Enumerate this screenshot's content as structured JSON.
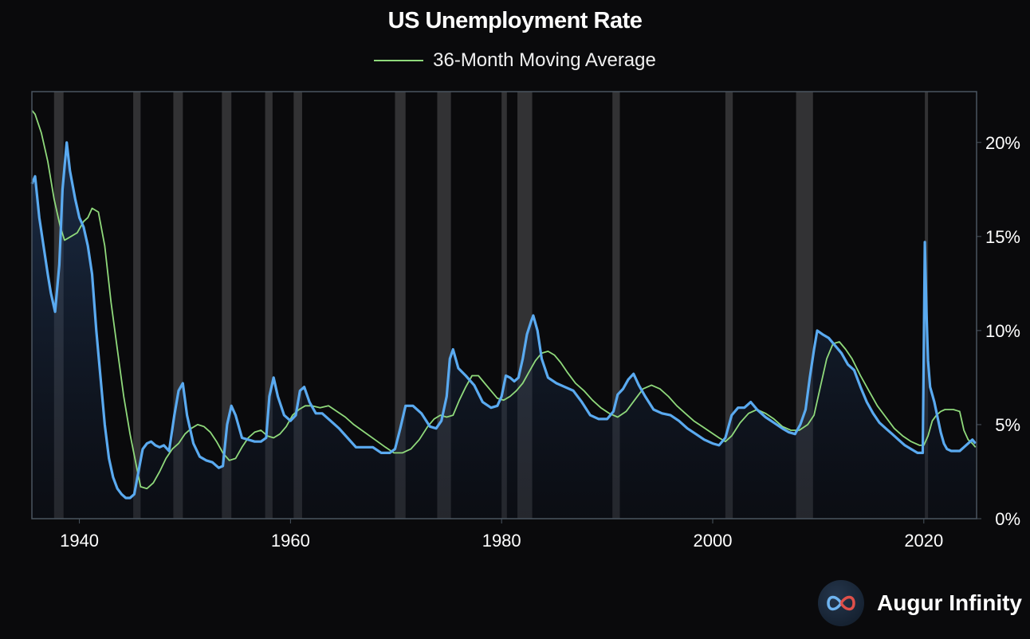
{
  "colors": {
    "background": "#0a0a0c",
    "series_line": "#5aaaf0",
    "moving_average": "#8fd97b",
    "recession_band": "#3a3a3c",
    "grid": "#2a2f36",
    "frame": "#4a5560"
  },
  "brand": {
    "name": "Augur Infinity",
    "icon": "infinity-logo-icon"
  },
  "chart_data": {
    "type": "line",
    "title": "US Unemployment Rate",
    "xlabel": "",
    "ylabel": "",
    "xlim": [
      1935.5,
      2025.0
    ],
    "ylim": [
      0,
      22.7
    ],
    "x_ticks": [
      1940,
      1960,
      1980,
      2000,
      2020
    ],
    "x_tick_labels": [
      "1940",
      "1960",
      "1980",
      "2000",
      "2020"
    ],
    "y_ticks": [
      0,
      5,
      10,
      15,
      20
    ],
    "y_tick_labels": [
      "0%",
      "5%",
      "10%",
      "15%",
      "20%"
    ],
    "y_axis_side": "right",
    "grid": false,
    "legend_position": "top-center",
    "recessions": [
      [
        1937.6,
        1938.5
      ],
      [
        1945.1,
        1945.8
      ],
      [
        1948.9,
        1949.8
      ],
      [
        1953.5,
        1954.4
      ],
      [
        1957.6,
        1958.3
      ],
      [
        1960.3,
        1961.1
      ],
      [
        1969.9,
        1970.9
      ],
      [
        1973.9,
        1975.2
      ],
      [
        1980.0,
        1980.5
      ],
      [
        1981.5,
        1982.9
      ],
      [
        1990.5,
        1991.2
      ],
      [
        2001.2,
        2001.9
      ],
      [
        2007.9,
        2009.5
      ],
      [
        2020.1,
        2020.4
      ]
    ],
    "series": [
      {
        "type": "area",
        "x": [
          1935.5,
          1935.8,
          1936.2,
          1936.6,
          1937.0,
          1937.3,
          1937.7,
          1938.1,
          1938.4,
          1938.8,
          1939.1,
          1939.6,
          1940.0,
          1940.4,
          1940.8,
          1941.2,
          1941.6,
          1942.0,
          1942.4,
          1942.8,
          1943.2,
          1943.6,
          1944.0,
          1944.4,
          1944.8,
          1945.2,
          1945.6,
          1946.0,
          1946.4,
          1946.8,
          1947.2,
          1947.6,
          1948.0,
          1948.5,
          1949.0,
          1949.4,
          1949.8,
          1950.2,
          1950.8,
          1951.4,
          1952.0,
          1952.6,
          1953.2,
          1953.6,
          1954.0,
          1954.4,
          1954.8,
          1955.4,
          1956.0,
          1956.6,
          1957.2,
          1957.7,
          1958.0,
          1958.4,
          1958.8,
          1959.4,
          1960.0,
          1960.5,
          1960.9,
          1961.3,
          1961.8,
          1962.4,
          1963.0,
          1963.8,
          1964.6,
          1965.4,
          1966.2,
          1967.0,
          1967.8,
          1968.6,
          1969.4,
          1969.9,
          1970.4,
          1970.9,
          1971.6,
          1972.4,
          1973.2,
          1973.8,
          1974.3,
          1974.8,
          1975.1,
          1975.4,
          1975.9,
          1976.6,
          1977.4,
          1978.2,
          1979.0,
          1979.6,
          1980.0,
          1980.4,
          1980.8,
          1981.2,
          1981.6,
          1982.0,
          1982.4,
          1982.8,
          1983.0,
          1983.4,
          1983.8,
          1984.4,
          1985.2,
          1986.0,
          1986.8,
          1987.6,
          1988.4,
          1989.2,
          1990.0,
          1990.6,
          1991.0,
          1991.5,
          1992.0,
          1992.5,
          1993.0,
          1993.6,
          1994.4,
          1995.2,
          1996.0,
          1996.8,
          1997.6,
          1998.4,
          1999.2,
          2000.0,
          2000.6,
          2001.2,
          2001.8,
          2002.4,
          2003.0,
          2003.6,
          2004.2,
          2005.0,
          2005.8,
          2006.6,
          2007.2,
          2007.8,
          2008.3,
          2008.8,
          2009.2,
          2009.6,
          2009.9,
          2010.4,
          2011.0,
          2011.6,
          2012.2,
          2012.8,
          2013.4,
          2014.0,
          2014.6,
          2015.2,
          2015.8,
          2016.4,
          2017.0,
          2017.6,
          2018.2,
          2018.8,
          2019.4,
          2019.9,
          2020.1,
          2020.25,
          2020.4,
          2020.6,
          2020.8,
          2021.0,
          2021.3,
          2021.6,
          2021.9,
          2022.2,
          2022.6,
          2023.0,
          2023.4,
          2023.8,
          2024.2,
          2024.6,
          2024.9
        ],
        "values": [
          17.8,
          18.2,
          16.0,
          14.5,
          13.0,
          12.0,
          11.0,
          13.5,
          17.5,
          20.0,
          18.5,
          17.0,
          16.0,
          15.5,
          14.5,
          13.0,
          10.0,
          7.5,
          5.0,
          3.2,
          2.2,
          1.6,
          1.3,
          1.1,
          1.1,
          1.3,
          2.5,
          3.7,
          4.0,
          4.1,
          3.9,
          3.8,
          3.9,
          3.6,
          5.5,
          6.8,
          7.2,
          5.5,
          4.0,
          3.3,
          3.1,
          3.0,
          2.7,
          2.8,
          5.0,
          6.0,
          5.5,
          4.3,
          4.2,
          4.1,
          4.1,
          4.3,
          6.5,
          7.5,
          6.5,
          5.5,
          5.2,
          5.5,
          6.8,
          7.0,
          6.2,
          5.6,
          5.6,
          5.2,
          4.8,
          4.3,
          3.8,
          3.8,
          3.8,
          3.5,
          3.5,
          3.7,
          4.8,
          6.0,
          6.0,
          5.6,
          4.9,
          4.8,
          5.2,
          6.5,
          8.5,
          9.0,
          8.0,
          7.6,
          7.1,
          6.2,
          5.9,
          6.0,
          6.5,
          7.6,
          7.5,
          7.3,
          7.5,
          8.5,
          9.8,
          10.5,
          10.8,
          10.0,
          8.5,
          7.5,
          7.2,
          7.0,
          6.8,
          6.2,
          5.5,
          5.3,
          5.3,
          5.7,
          6.6,
          6.9,
          7.4,
          7.7,
          7.1,
          6.5,
          5.8,
          5.6,
          5.5,
          5.2,
          4.8,
          4.5,
          4.2,
          4.0,
          3.9,
          4.3,
          5.5,
          5.9,
          5.9,
          6.2,
          5.8,
          5.4,
          5.1,
          4.8,
          4.6,
          4.5,
          5.0,
          5.8,
          7.5,
          9.0,
          10.0,
          9.8,
          9.6,
          9.2,
          8.8,
          8.2,
          7.9,
          7.0,
          6.2,
          5.6,
          5.1,
          4.8,
          4.5,
          4.2,
          3.9,
          3.7,
          3.5,
          3.5,
          14.7,
          11.0,
          8.4,
          7.0,
          6.6,
          6.2,
          5.4,
          4.6,
          4.0,
          3.7,
          3.6,
          3.6,
          3.6,
          3.8,
          4.0,
          4.2,
          4.0
        ]
      },
      {
        "name": "36-Month Moving Average",
        "type": "line",
        "x": [
          1935.5,
          1935.8,
          1936.4,
          1937.0,
          1937.6,
          1938.2,
          1938.6,
          1939.2,
          1939.8,
          1940.4,
          1940.8,
          1941.2,
          1941.8,
          1942.4,
          1943.0,
          1943.6,
          1944.2,
          1944.8,
          1945.4,
          1945.8,
          1946.4,
          1947.0,
          1947.6,
          1948.2,
          1948.8,
          1949.4,
          1950.0,
          1950.6,
          1951.2,
          1951.8,
          1952.4,
          1953.0,
          1953.6,
          1954.2,
          1954.8,
          1955.4,
          1956.0,
          1956.6,
          1957.2,
          1957.8,
          1958.4,
          1959.0,
          1959.6,
          1960.2,
          1960.8,
          1961.4,
          1962.0,
          1962.8,
          1963.6,
          1964.4,
          1965.2,
          1966.0,
          1967.0,
          1968.0,
          1969.0,
          1969.8,
          1970.6,
          1971.4,
          1972.2,
          1973.0,
          1973.6,
          1974.2,
          1974.8,
          1975.4,
          1976.0,
          1976.6,
          1977.2,
          1977.8,
          1978.4,
          1979.0,
          1979.6,
          1980.2,
          1980.8,
          1981.4,
          1982.0,
          1982.6,
          1983.2,
          1983.8,
          1984.4,
          1985.0,
          1985.6,
          1986.2,
          1987.0,
          1987.8,
          1988.6,
          1989.4,
          1990.2,
          1991.0,
          1991.8,
          1992.6,
          1993.4,
          1994.2,
          1995.0,
          1995.8,
          1996.6,
          1997.4,
          1998.2,
          1999.0,
          1999.8,
          2000.6,
          2001.2,
          2001.8,
          2002.6,
          2003.4,
          2004.2,
          2005.0,
          2005.8,
          2006.6,
          2007.4,
          2008.2,
          2009.0,
          2009.6,
          2010.2,
          2010.8,
          2011.4,
          2012.0,
          2012.6,
          2013.2,
          2014.0,
          2014.8,
          2015.6,
          2016.4,
          2017.2,
          2018.0,
          2018.8,
          2019.6,
          2020.0,
          2020.4,
          2020.8,
          2021.2,
          2021.6,
          2022.0,
          2022.4,
          2022.8,
          2023.1,
          2023.4,
          2023.8,
          2024.2,
          2024.6,
          2024.9
        ],
        "values": [
          21.7,
          21.5,
          20.5,
          19.0,
          17.0,
          15.5,
          14.8,
          15.0,
          15.2,
          15.8,
          16.0,
          16.5,
          16.3,
          14.5,
          11.5,
          9.0,
          6.5,
          4.5,
          2.8,
          1.7,
          1.6,
          1.9,
          2.5,
          3.2,
          3.7,
          4.0,
          4.5,
          4.8,
          5.0,
          4.9,
          4.6,
          4.1,
          3.5,
          3.1,
          3.2,
          3.8,
          4.3,
          4.6,
          4.7,
          4.4,
          4.3,
          4.5,
          4.9,
          5.5,
          5.8,
          6.0,
          6.0,
          5.9,
          6.0,
          5.7,
          5.4,
          5.0,
          4.6,
          4.2,
          3.8,
          3.5,
          3.5,
          3.7,
          4.2,
          4.9,
          5.3,
          5.5,
          5.4,
          5.5,
          6.3,
          7.0,
          7.6,
          7.6,
          7.2,
          6.8,
          6.4,
          6.3,
          6.5,
          6.8,
          7.2,
          7.8,
          8.4,
          8.8,
          8.9,
          8.7,
          8.3,
          7.8,
          7.2,
          6.8,
          6.3,
          5.9,
          5.6,
          5.4,
          5.7,
          6.3,
          6.9,
          7.1,
          6.9,
          6.5,
          6.0,
          5.6,
          5.2,
          4.9,
          4.6,
          4.3,
          4.1,
          4.4,
          5.1,
          5.6,
          5.8,
          5.6,
          5.3,
          4.9,
          4.7,
          4.7,
          5.0,
          5.5,
          7.0,
          8.5,
          9.3,
          9.4,
          9.0,
          8.5,
          7.6,
          6.8,
          6.0,
          5.4,
          4.8,
          4.4,
          4.1,
          3.9,
          3.9,
          4.4,
          5.2,
          5.5,
          5.7,
          5.8,
          5.8,
          5.8,
          5.75,
          5.7,
          4.7,
          4.2,
          4.0,
          3.8
        ]
      }
    ]
  }
}
